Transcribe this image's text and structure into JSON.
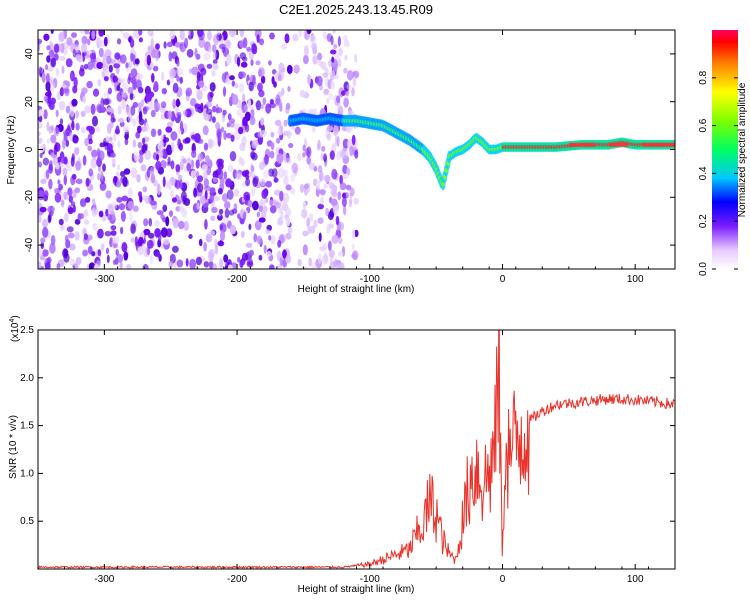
{
  "title": "C2E1.2025.243.13.45.R09",
  "chart_data": [
    {
      "type": "heatmap",
      "xlabel": "Height of straight line (km)",
      "ylabel": "Frequency (Hz)",
      "xlim": [
        -350,
        130
      ],
      "ylim": [
        -50,
        50
      ],
      "x_ticks": [
        -300,
        -200,
        -100,
        0,
        100
      ],
      "y_ticks": [
        -40,
        -20,
        0,
        20,
        40
      ],
      "colorbar": {
        "label": "Normalized spectral amplitude",
        "range": [
          0,
          1
        ],
        "ticks": [
          "0.0",
          "0.2",
          "0.4",
          "0.6",
          "0.8"
        ]
      },
      "noise_region_km": [
        -350,
        -110
      ],
      "signal_ridge": {
        "x": [
          -160,
          -150,
          -140,
          -130,
          -120,
          -110,
          -100,
          -90,
          -80,
          -70,
          -60,
          -55,
          -50,
          -45,
          -40,
          -35,
          -30,
          -25,
          -20,
          -15,
          -10,
          -5,
          0,
          10,
          20,
          40,
          60,
          80,
          90,
          100,
          120,
          130
        ],
        "y": [
          12,
          13,
          12,
          13,
          12,
          12,
          11,
          10,
          7,
          4,
          0,
          -3,
          -8,
          -15,
          -3,
          -1,
          0,
          2,
          5,
          3,
          0,
          0,
          1,
          1,
          1,
          1,
          2,
          2,
          3,
          2,
          2,
          2
        ]
      }
    },
    {
      "type": "line",
      "xlabel": "Height of straight line (km)",
      "ylabel": "SNR (10 * v/v)",
      "y_multiplier_label": "(x10",
      "y_multiplier_exp": "4",
      "y_multiplier_close": ")",
      "xlim": [
        -350,
        130
      ],
      "ylim": [
        0,
        2.5
      ],
      "x_ticks": [
        -300,
        -200,
        -100,
        0,
        100
      ],
      "y_ticks": [
        "0.5",
        "1.0",
        "1.5",
        "2.0",
        "2.5"
      ],
      "series_color": "#e8322a",
      "x": [
        -350,
        -120,
        -100,
        -90,
        -80,
        -70,
        -65,
        -60,
        -55,
        -50,
        -45,
        -40,
        -35,
        -30,
        -25,
        -20,
        -15,
        -10,
        -5,
        -3,
        0,
        2,
        5,
        10,
        15,
        20,
        30,
        40,
        60,
        80,
        100,
        120,
        130
      ],
      "values": [
        0.02,
        0.02,
        0.05,
        0.1,
        0.15,
        0.2,
        0.35,
        0.45,
        0.7,
        0.6,
        0.3,
        0.15,
        0.1,
        0.5,
        0.9,
        1.1,
        0.9,
        1.0,
        1.3,
        2.5,
        0.0,
        1.4,
        1.2,
        1.3,
        1.5,
        1.55,
        1.65,
        1.72,
        1.75,
        1.78,
        1.77,
        1.74,
        1.72
      ]
    }
  ]
}
